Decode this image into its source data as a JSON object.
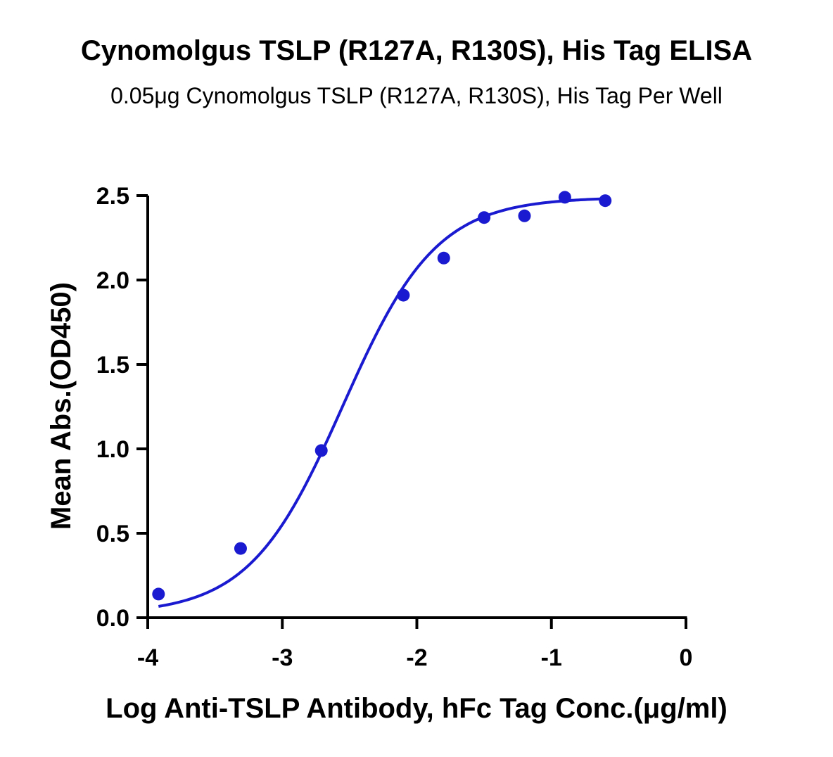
{
  "chart_data": {
    "type": "scatter",
    "title": "Cynomolgus TSLP (R127A, R130S), His Tag ELISA",
    "subtitle": "0.05μg Cynomolgus TSLP (R127A, R130S), His Tag Per Well",
    "xlabel": "Log Anti-TSLP Antibody, hFc Tag Conc.(μg/ml)",
    "ylabel": "Mean Abs.(OD450)",
    "xlim": [
      -4,
      0
    ],
    "ylim": [
      0,
      2.5
    ],
    "xticks": [
      "-4",
      "-3",
      "-2",
      "-1",
      "0"
    ],
    "yticks": [
      "0.0",
      "0.5",
      "1.0",
      "1.5",
      "2.0",
      "2.5"
    ],
    "xtick_values": [
      -4,
      -3,
      -2,
      -1,
      0
    ],
    "ytick_values": [
      0,
      0.5,
      1.0,
      1.5,
      2.0,
      2.5
    ],
    "grid": false,
    "legend": "none",
    "series": [
      {
        "x": [
          -3.92,
          -3.31,
          -2.71,
          -2.1,
          -1.8,
          -1.5,
          -1.2,
          -0.9,
          -0.6
        ],
        "y": [
          0.14,
          0.41,
          0.99,
          1.91,
          2.13,
          2.37,
          2.38,
          2.49,
          2.47
        ],
        "color": "#1a1ad0",
        "fit": "four-parameter logistic"
      }
    ]
  }
}
